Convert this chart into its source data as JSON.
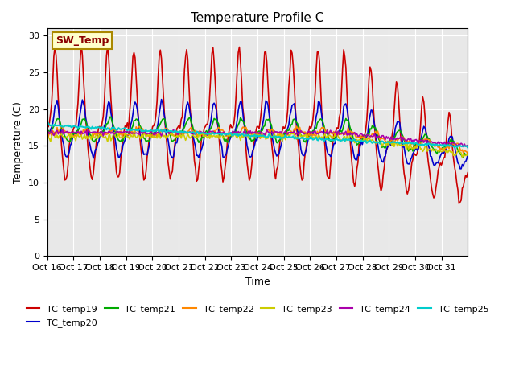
{
  "title": "Temperature Profile C",
  "xlabel": "Time",
  "ylabel": "Temperature (C)",
  "ylim": [
    0,
    31
  ],
  "yticks": [
    0,
    5,
    10,
    15,
    20,
    25,
    30
  ],
  "x_labels": [
    "Oct 16",
    "Oct 17",
    "Oct 18",
    "Oct 19",
    "Oct 20",
    "Oct 21",
    "Oct 22",
    "Oct 23",
    "Oct 24",
    "Oct 25",
    "Oct 26",
    "Oct 27",
    "Oct 28",
    "Oct 29",
    "Oct 30",
    "Oct 31"
  ],
  "series_colors": {
    "TC_temp19": "#cc0000",
    "TC_temp20": "#0000cc",
    "TC_temp21": "#00aa00",
    "TC_temp22": "#ff8800",
    "TC_temp23": "#cccc00",
    "TC_temp24": "#aa00aa",
    "TC_temp25": "#00cccc"
  },
  "legend_label": "SW_Temp",
  "legend_box_color": "#ffffcc",
  "legend_box_edge": "#aa8800",
  "background_color": "#e8e8e8",
  "plot_bg_color": "#e8e8e8"
}
